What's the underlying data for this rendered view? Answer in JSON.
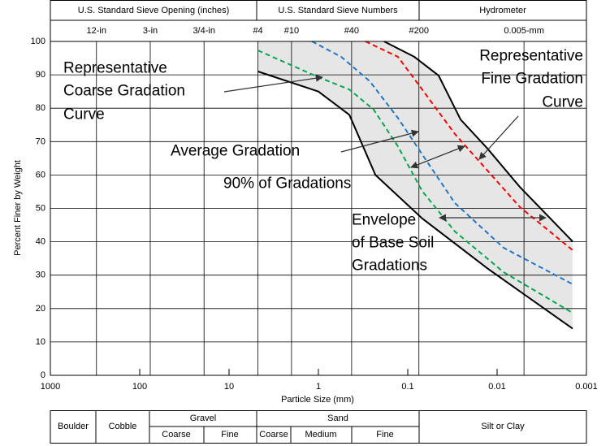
{
  "chart_data": {
    "type": "line",
    "xlabel": "Particle Size (mm)",
    "ylabel": "Percent Finer by Weight",
    "xscale": "log",
    "xlim": [
      1000,
      0.001
    ],
    "xticks": [
      1000,
      100,
      10,
      1,
      0.1,
      0.01,
      0.001
    ],
    "ylim": [
      0,
      100
    ],
    "yticks": [
      0,
      10,
      20,
      30,
      40,
      50,
      60,
      70,
      80,
      90,
      100
    ],
    "grid": true,
    "sieve_ticks": [
      {
        "value": 304.8,
        "label": "12-in"
      },
      {
        "value": 76.2,
        "label": "3-in"
      },
      {
        "value": 19.05,
        "label": "3/4-in"
      },
      {
        "value": 4.75,
        "label": "#4"
      },
      {
        "value": 2,
        "label": "#10"
      },
      {
        "value": 0.425,
        "label": "#40"
      },
      {
        "value": 0.075,
        "label": "#200"
      },
      {
        "value": 0.005,
        "label": "0.005-mm"
      }
    ],
    "header": [
      "U.S. Standard Sieve Opening (inches)",
      "U.S. Standard Sieve Numbers",
      "Hydrometer"
    ],
    "classification": {
      "main": [
        "Boulder",
        "Cobble",
        "Gravel",
        "Sand",
        "Silt or Clay"
      ],
      "sub": [
        "Coarse",
        "Fine",
        "Coarse",
        "Medium",
        "Fine"
      ]
    },
    "envelope_color": "#e6e6e6",
    "series": [
      {
        "color": "#000000",
        "dashed": false,
        "x": [
          4.75,
          1,
          0.45,
          0.23,
          0.069,
          0.0128,
          0.00143
        ],
        "values": [
          91,
          85,
          78,
          60,
          47,
          32,
          14
        ]
      },
      {
        "color": "#000000",
        "dashed": false,
        "x": [
          0.184,
          0.0846,
          0.0452,
          0.0256,
          0.0128,
          0.00556,
          0.00143
        ],
        "values": [
          100,
          95.4,
          89.8,
          76.6,
          67.9,
          56.4,
          40.1
        ]
      },
      {
        "color": "#00a84f",
        "dashed": true,
        "x": [
          4.75,
          1,
          0.45,
          0.241,
          0.129,
          0.069,
          0.0297,
          0.00845,
          0.00143
        ],
        "values": [
          97.3,
          89.3,
          85.6,
          79.6,
          68.6,
          55.2,
          43.1,
          30.9,
          18.7
        ]
      },
      {
        "color": "#1f77c8",
        "dashed": true,
        "x": [
          1.18,
          0.556,
          0.267,
          0.129,
          0.069,
          0.0297,
          0.00845,
          0.00143
        ],
        "values": [
          100,
          95.4,
          88.1,
          77.1,
          66.2,
          51.6,
          38.2,
          27.3
        ]
      },
      {
        "color": "#ff0000",
        "dashed": true,
        "x": [
          0.297,
          0.129,
          0.069,
          0.0297,
          0.0128,
          0.00556,
          0.00143
        ],
        "values": [
          100,
          95.4,
          85.6,
          72.3,
          61.3,
          50.4,
          37.5
        ]
      }
    ],
    "annotations": [
      {
        "color": "#00a84f",
        "lines": [
          "Representative",
          "Coarse Gradation",
          "Curve"
        ]
      },
      {
        "color": "#ff0000",
        "lines": [
          "Representative",
          "Fine Gradation",
          "Curve"
        ]
      },
      {
        "color": "#1f77c8",
        "lines": [
          "Average Gradation"
        ]
      },
      {
        "color": "#555555",
        "lines": [
          "90% of Gradations"
        ]
      },
      {
        "color": "#000000",
        "lines": [
          "Envelope",
          "of Base Soil",
          "Gradations"
        ]
      }
    ]
  }
}
